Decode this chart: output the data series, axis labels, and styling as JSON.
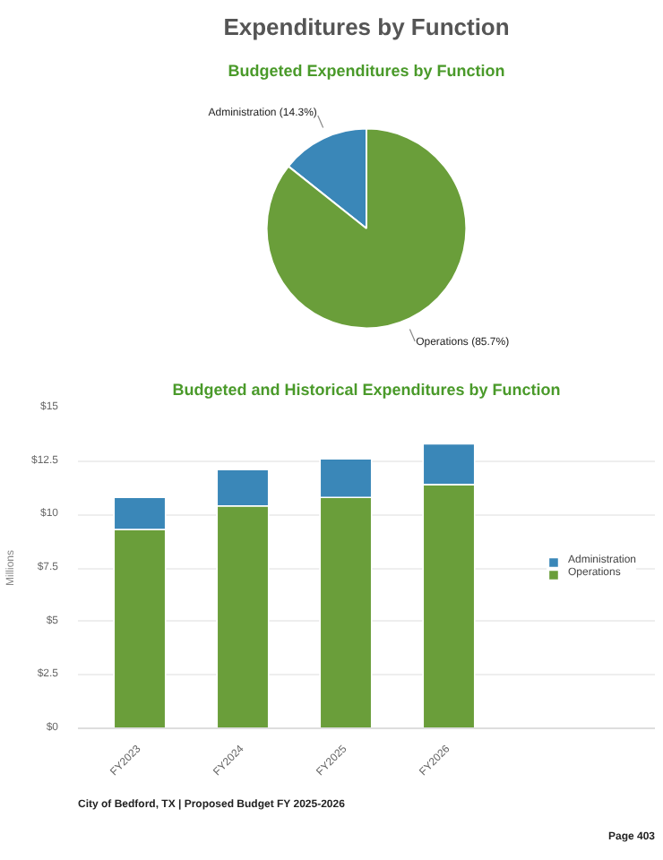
{
  "chart_data": [
    {
      "type": "pie",
      "title": "Expenditures by Function",
      "subtitle": "Budgeted Expenditures by Function",
      "categories": [
        "Administration",
        "Operations"
      ],
      "values": [
        14.3,
        85.7
      ],
      "colors": [
        "#3a87b8",
        "#6a9e3a"
      ],
      "value_labels": [
        "(14.3%)",
        "(85.7%)"
      ]
    },
    {
      "type": "bar",
      "title": "Budgeted and Historical Expenditures by Function",
      "ylabel": "Millions",
      "categories": [
        "FY2023",
        "FY2024",
        "FY2025",
        "FY2026"
      ],
      "stacked": true,
      "series": [
        {
          "name": "Operations",
          "color": "#6a9e3a",
          "values": [
            9.3,
            10.4,
            10.8,
            11.4
          ]
        },
        {
          "name": "Administration",
          "color": "#3a87b8",
          "values": [
            1.5,
            1.7,
            1.8,
            1.9
          ]
        }
      ],
      "ylim": [
        0,
        15
      ],
      "yticks": [
        {
          "value": 0,
          "label": "$0"
        },
        {
          "value": 2.5,
          "label": "$2.5"
        },
        {
          "value": 5,
          "label": "$5"
        },
        {
          "value": 7.5,
          "label": "$7.5"
        },
        {
          "value": 10,
          "label": "$10"
        },
        {
          "value": 12.5,
          "label": "$12.5"
        },
        {
          "value": 15,
          "label": "$15"
        }
      ],
      "grid": "y",
      "legend": "right",
      "annotations": [
        "City of Bedford, TX | Proposed Budget FY 2025-2026",
        "Page 403"
      ]
    }
  ]
}
